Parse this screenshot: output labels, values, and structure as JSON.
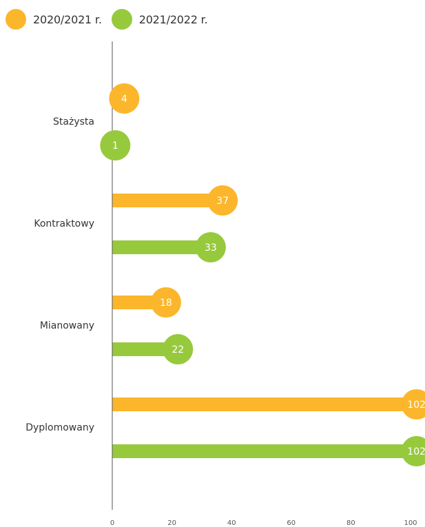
{
  "chart_data": {
    "type": "bar",
    "orientation": "horizontal",
    "style": "lollipop",
    "categories": [
      "Stażysta",
      "Kontraktowy",
      "Mianowany",
      "Dyplomowany"
    ],
    "series": [
      {
        "name": "2020/2021 r.",
        "color": "#fbb62c",
        "values": [
          4,
          37,
          18,
          102
        ]
      },
      {
        "name": "2021/2022 r.",
        "color": "#97c93d",
        "values": [
          1,
          33,
          22,
          102
        ]
      }
    ],
    "xlim": [
      0,
      100
    ],
    "xticks": [
      0,
      20,
      40,
      60,
      80,
      100
    ],
    "grid": false,
    "legend_position": "top-left"
  }
}
